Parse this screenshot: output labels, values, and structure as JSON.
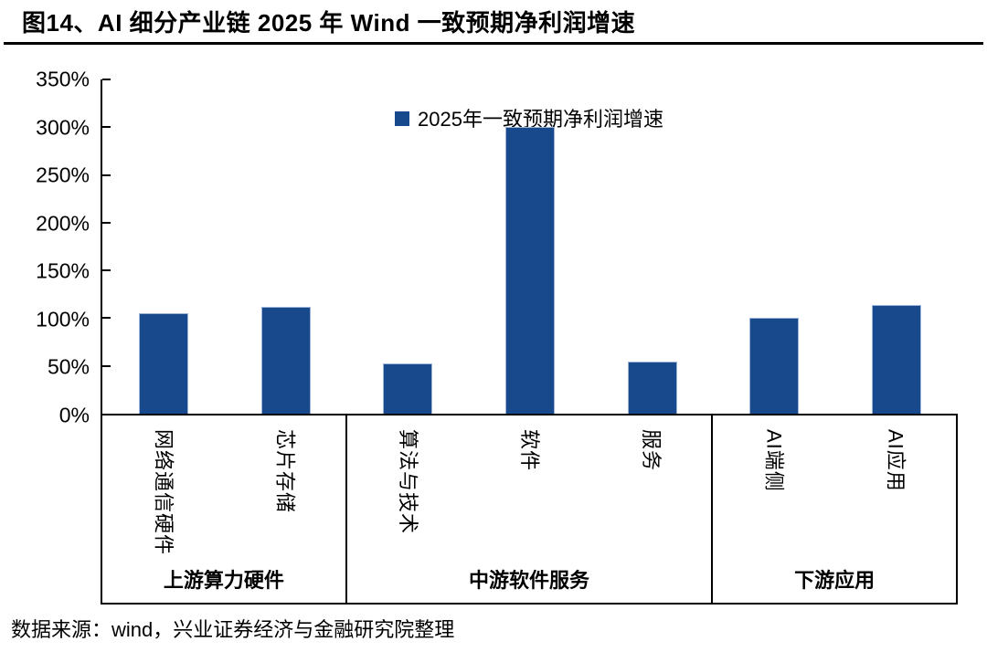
{
  "title": "图14、AI 细分产业链 2025 年 Wind 一致预期净利润增速",
  "source": "数据来源：wind，兴业证券经济与金融研究院整理",
  "chart_data": {
    "type": "bar",
    "title": "图14、AI 细分产业链 2025 年 Wind 一致预期净利润增速",
    "legend": "2025年一致预期净利润增速",
    "legend_position": "top-center",
    "bar_color": "#17498C",
    "axis_color": "#000000",
    "grid": false,
    "ylabel": "",
    "xlabel": "",
    "ylim": [
      0,
      350
    ],
    "ytick_step": 50,
    "ytick_labels": [
      "0%",
      "50%",
      "100%",
      "150%",
      "200%",
      "250%",
      "300%",
      "350%"
    ],
    "unit": "percent",
    "groups": [
      {
        "label": "上游算力硬件",
        "categories": [
          "网络通信硬件",
          "芯片存储"
        ],
        "values": [
          105,
          112
        ]
      },
      {
        "label": "中游软件服务",
        "categories": [
          "算法与技术",
          "软件",
          "服务"
        ],
        "values": [
          53,
          300,
          55
        ]
      },
      {
        "label": "下游应用",
        "categories": [
          "AI端侧",
          "AI应用"
        ],
        "values": [
          100,
          114
        ]
      }
    ]
  }
}
